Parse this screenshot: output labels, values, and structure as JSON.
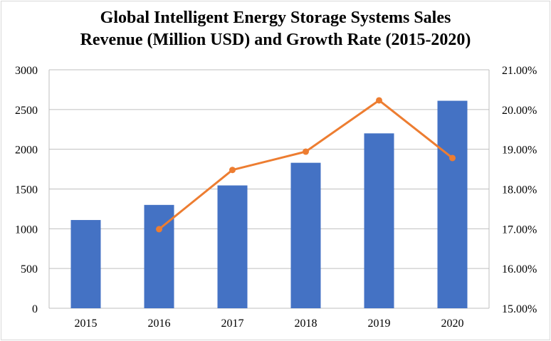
{
  "chart_data": {
    "type": "bar",
    "title_line1": "Global Intelligent Energy Storage Systems Sales",
    "title_line2": "Revenue (Million USD) and Growth Rate (2015-2020)",
    "categories": [
      "2015",
      "2016",
      "2017",
      "2018",
      "2019",
      "2020"
    ],
    "series": [
      {
        "type": "bar",
        "axis": "left",
        "color": "#4472c4",
        "values": [
          1110,
          1300,
          1545,
          1830,
          2200,
          2610
        ]
      },
      {
        "type": "line",
        "axis": "right",
        "color": "#ed7d31",
        "values": [
          null,
          0.1699,
          0.1848,
          0.1894,
          0.2023,
          0.1878
        ]
      }
    ],
    "y_left": {
      "min": 0,
      "max": 3000,
      "ticks": [
        0,
        500,
        1000,
        1500,
        2000,
        2500,
        3000
      ],
      "tick_labels": [
        "0",
        "500",
        "1000",
        "1500",
        "2000",
        "2500",
        "3000"
      ]
    },
    "y_right": {
      "min": 0.15,
      "max": 0.21,
      "ticks": [
        0.15,
        0.16,
        0.17,
        0.18,
        0.19,
        0.2,
        0.21
      ],
      "tick_labels": [
        "15.00%",
        "16.00%",
        "17.00%",
        "18.00%",
        "19.00%",
        "20.00%",
        "21.00%"
      ]
    },
    "grid": true,
    "legend": "none"
  }
}
